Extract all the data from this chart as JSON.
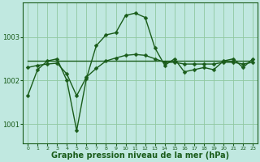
{
  "background_color": "#c0e8e0",
  "plot_bg_color": "#c0e8e0",
  "grid_color": "#90c8a0",
  "line_color": "#1a5c1a",
  "marker_color": "#1a5c1a",
  "xlabel": "Graphe pression niveau de la mer (hPa)",
  "xlabel_fontsize": 7,
  "ylim": [
    1000.55,
    1003.8
  ],
  "yticks": [
    1001,
    1002,
    1003
  ],
  "xlim": [
    -0.5,
    23.5
  ],
  "xticks": [
    0,
    1,
    2,
    3,
    4,
    5,
    6,
    7,
    8,
    9,
    10,
    11,
    12,
    13,
    14,
    15,
    16,
    17,
    18,
    19,
    20,
    21,
    22,
    23
  ],
  "series": [
    {
      "y": [
        1001.65,
        1002.25,
        1002.45,
        1002.5,
        1002.0,
        1000.85,
        1002.05,
        1002.8,
        1003.05,
        1003.1,
        1003.5,
        1003.55,
        1003.45,
        1002.75,
        1002.35,
        1002.5,
        1002.2,
        1002.25,
        1002.3,
        1002.25,
        1002.45,
        1002.5,
        1002.3,
        1002.5
      ],
      "has_markers": true,
      "lw": 1.0
    },
    {
      "y": [
        1002.45,
        1002.45,
        1002.45,
        1002.45,
        1002.45,
        1002.45,
        1002.45,
        1002.45,
        1002.45,
        1002.45,
        1002.45,
        1002.45,
        1002.45,
        1002.45,
        1002.45,
        1002.45,
        1002.45,
        1002.45,
        1002.45,
        1002.45,
        1002.45,
        1002.45,
        1002.45,
        1002.45
      ],
      "has_markers": false,
      "lw": 1.0
    },
    {
      "y": [
        1002.3,
        1002.35,
        1002.38,
        1002.4,
        1002.15,
        1001.65,
        1002.08,
        1002.28,
        1002.45,
        1002.52,
        1002.58,
        1002.6,
        1002.58,
        1002.5,
        1002.42,
        1002.42,
        1002.38,
        1002.38,
        1002.38,
        1002.38,
        1002.42,
        1002.42,
        1002.38,
        1002.42
      ],
      "has_markers": true,
      "lw": 1.0
    }
  ],
  "marker_size": 2.5,
  "marker_style": "D"
}
